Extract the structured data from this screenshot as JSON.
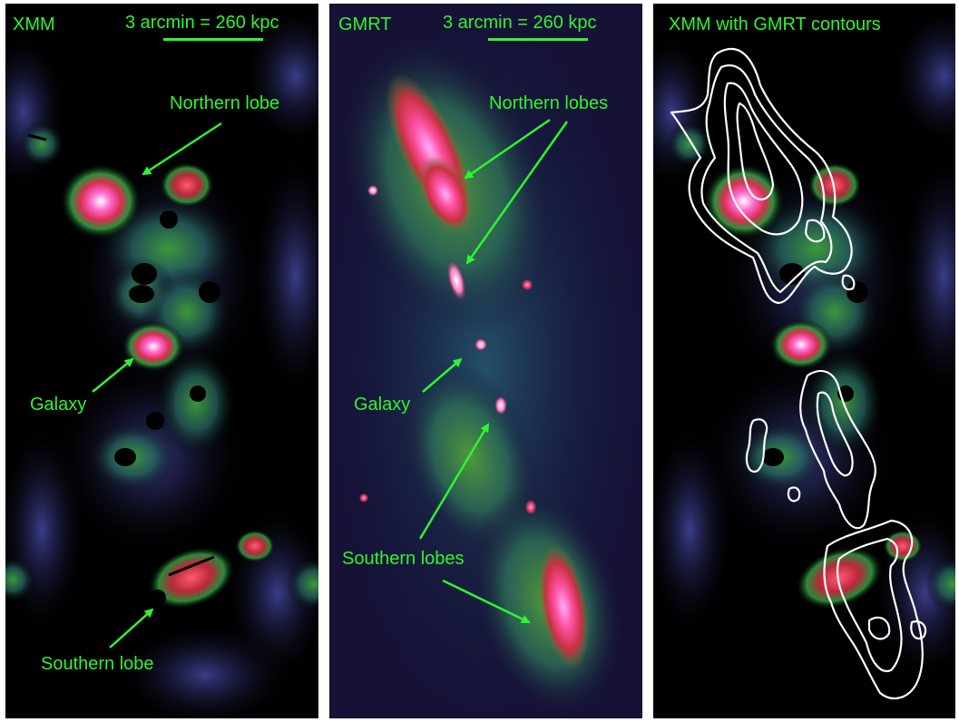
{
  "panels": [
    {
      "title": "XMM",
      "scale_label": "3 arcmin = 260 kpc",
      "labels": {
        "north": "Northern lobe",
        "galaxy": "Galaxy",
        "south": "Southern lobe"
      }
    },
    {
      "title": "GMRT",
      "scale_label": "3 arcmin = 260 kpc",
      "labels": {
        "north": "Northern lobes",
        "galaxy": "Galaxy",
        "south": "Southern lobes"
      }
    },
    {
      "title": "XMM with GMRT contours"
    }
  ],
  "colors": {
    "annotation": "#2ef52e",
    "contour": "#ffffff",
    "radio_background": "#151236",
    "xray_background": "#000000"
  }
}
